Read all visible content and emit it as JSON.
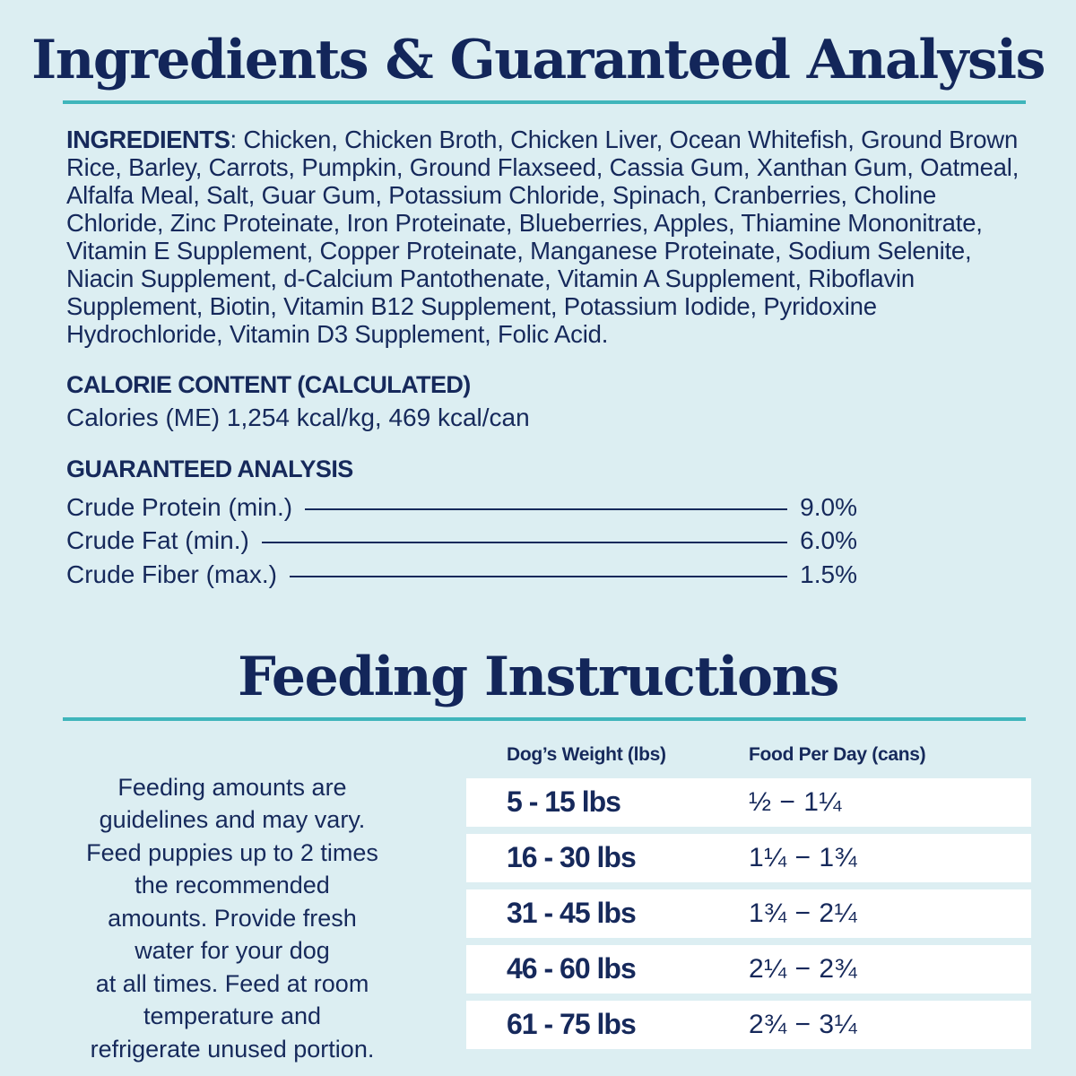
{
  "colors": {
    "background": "#dceef2",
    "navy_text": "#16295b",
    "teal_rule": "#3fb5bb",
    "row_white": "#ffffff"
  },
  "ingredients_section": {
    "title": "Ingredients & Guaranteed Analysis",
    "ingredients_label": "INGREDIENTS",
    "ingredients_text": ": Chicken, Chicken Broth, Chicken Liver, Ocean Whitefish, Ground Brown Rice, Barley, Carrots, Pumpkin, Ground Flaxseed, Cassia Gum, Xanthan Gum, Oatmeal, Alfalfa Meal, Salt, Guar Gum, Potassium Chloride, Spinach, Cranberries, Choline Chloride, Zinc Proteinate, Iron Proteinate, Blueberries, Apples, Thiamine Mononitrate, Vitamin E Supplement, Copper Proteinate, Manganese Proteinate, Sodium Selenite, Niacin Supplement, d-Calcium Pantothenate, Vitamin A Supplement, Riboflavin Supplement, Biotin, Vitamin B12 Supplement, Potassium Iodide, Pyridoxine Hydrochloride, Vitamin D3 Supplement, Folic Acid.",
    "calorie_heading": "CALORIE CONTENT (CALCULATED)",
    "calorie_line": "Calories (ME) 1,254 kcal/kg, 469 kcal/can",
    "analysis_heading": "GUARANTEED ANALYSIS",
    "analysis_rows": [
      {
        "label": "Crude Protein (min.)",
        "value": "9.0%"
      },
      {
        "label": "Crude Fat (min.)",
        "value": "6.0%"
      },
      {
        "label": "Crude Fiber (max.)",
        "value": "1.5%"
      }
    ]
  },
  "feeding_section": {
    "title": "Feeding Instructions",
    "note_lines": [
      "Feeding amounts are",
      "guidelines and may vary.",
      "Feed puppies up to 2 times",
      "the recommended",
      "amounts. Provide fresh",
      "water for your dog",
      "at all times. Feed at room",
      "temperature and",
      "refrigerate unused portion."
    ],
    "table": {
      "headers": {
        "weight": "Dog’s Weight (lbs)",
        "food": "Food Per Day (cans)"
      },
      "rows": [
        {
          "weight": "5 - 15 lbs",
          "food": "½ − 1¼"
        },
        {
          "weight": "16 - 30 lbs",
          "food": "1¼ − 1¾"
        },
        {
          "weight": "31 - 45 lbs",
          "food": "1¾ − 2¼"
        },
        {
          "weight": "46 - 60 lbs",
          "food": "2¼ − 2¾"
        },
        {
          "weight": "61 - 75 lbs",
          "food": "2¾ − 3¼"
        }
      ]
    }
  }
}
